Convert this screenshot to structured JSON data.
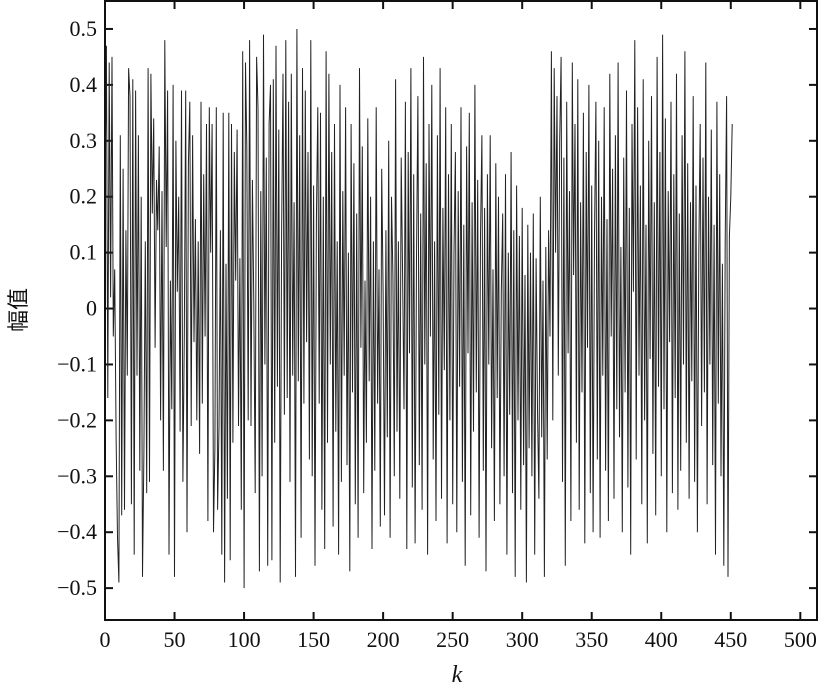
{
  "chart_data": {
    "type": "line",
    "title": "",
    "xlabel": "k",
    "ylabel": "幅值",
    "xlim": [
      0,
      512
    ],
    "ylim": [
      -0.557,
      0.55
    ],
    "grid": false,
    "xticks": [
      "0",
      "50",
      "100",
      "150",
      "200",
      "250",
      "300",
      "350",
      "400",
      "450",
      "500"
    ],
    "yticks": [
      "0.5",
      "0.4",
      "0.3",
      "0.2",
      "0.1",
      "0",
      "−0.1",
      "−0.2",
      "−0.3",
      "−0.4",
      "−0.5"
    ],
    "line_color": "#222222",
    "y": [
      0.21,
      0.47,
      -0.16,
      0.44,
      0.02,
      0.45,
      -0.05,
      0.07,
      -0.23,
      -0.41,
      -0.49,
      0.31,
      -0.37,
      0.25,
      -0.36,
      0.14,
      -0.12,
      0.43,
      0.38,
      -0.35,
      0.41,
      -0.44,
      0.39,
      -0.12,
      0.31,
      -0.29,
      0.2,
      -0.48,
      -0.26,
      0.12,
      -0.33,
      0.43,
      -0.31,
      0.42,
      0.17,
      0.34,
      -0.07,
      0.23,
      0.14,
      0.29,
      -0.2,
      0.21,
      -0.29,
      0.48,
      0.11,
      0.39,
      -0.44,
      0.05,
      -0.18,
      0.4,
      -0.48,
      0.3,
      0.03,
      0.2,
      -0.22,
      0.39,
      -0.31,
      -0.05,
      0.39,
      -0.4,
      0.26,
      0.37,
      -0.21,
      0.31,
      -0.06,
      0.16,
      -0.2,
      0.12,
      -0.26,
      0.37,
      -0.17,
      0.24,
      -0.05,
      0.33,
      -0.38,
      0.36,
      0.1,
      0.33,
      -0.4,
      -0.25,
      0.36,
      -0.36,
      -0.21,
      0.14,
      -0.44,
      0.35,
      -0.49,
      0.08,
      -0.34,
      0.35,
      -0.45,
      0.33,
      -0.24,
      0.28,
      0.05,
      0.32,
      -0.21,
      0.09,
      -0.36,
      0.46,
      -0.5,
      0.44,
      0.29,
      -0.2,
      0.48,
      -0.21,
      0.23,
      0.01,
      -0.33,
      0.45,
      0.36,
      -0.47,
      0.21,
      -0.3,
      0.49,
      -0.1,
      0.27,
      -0.46,
      0.33,
      0.4,
      -0.45,
      0.41,
      -0.24,
      0.47,
      -0.14,
      0.32,
      -0.49,
      0.13,
      0.42,
      -0.19,
      0.48,
      -0.16,
      0.37,
      -0.31,
      0.42,
      -0.12,
      0.19,
      -0.48,
      0.5,
      -0.13,
      0.31,
      -0.41,
      0.43,
      -0.17,
      0.39,
      -0.06,
      0.28,
      -0.27,
      0.48,
      -0.3,
      0.22,
      -0.46,
      0.16,
      0.36,
      -0.17,
      0.35,
      -0.36,
      0.2,
      -0.43,
      0.46,
      -0.24,
      0.42,
      -0.1,
      0.28,
      -0.39,
      0.33,
      -0.22,
      0.12,
      -0.44,
      0.4,
      -0.31,
      0.21,
      -0.12,
      0.36,
      -0.28,
      0.1,
      -0.47,
      0.33,
      -0.15,
      0.26,
      -0.35,
      0.17,
      -0.41,
      0.43,
      -0.07,
      0.29,
      -0.33,
      0.05,
      -0.24,
      0.34,
      -0.13,
      0.2,
      -0.43,
      0.12,
      -0.29,
      0.36,
      -0.17,
      0.07,
      -0.39,
      0.25,
      0.03,
      -0.37,
      0.14,
      -0.23,
      0.3,
      -0.41,
      0.2,
      0.06,
      -0.3,
      0.41,
      -0.22,
      0.12,
      -0.34,
      0.27,
      0.06,
      -0.18,
      0.37,
      -0.43,
      0.28,
      -0.08,
      0.43,
      -0.32,
      0.24,
      -0.42,
      0.09,
      0.38,
      -0.28,
      0.17,
      -0.36,
      0.45,
      -0.1,
      0.26,
      -0.44,
      0.33,
      -0.05,
      0.4,
      -0.27,
      0.12,
      -0.38,
      0.31,
      -0.19,
      0.43,
      -0.34,
      0.18,
      -0.11,
      0.36,
      -0.42,
      0.24,
      -0.2,
      0.33,
      -0.35,
      0.1,
      0.28,
      -0.4,
      0.21,
      -0.14,
      0.36,
      -0.31,
      0.15,
      -0.46,
      0.29,
      -0.08,
      0.35,
      -0.37,
      0.19,
      -0.22,
      0.4,
      -0.15,
      0.23,
      -0.41,
      0.13,
      0.31,
      -0.29,
      0.18,
      -0.47,
      0.24,
      -0.1,
      0.31,
      -0.25,
      0.07,
      -0.38,
      0.26,
      -0.16,
      0.2,
      -0.35,
      0.03,
      0.17,
      -0.3,
      0.24,
      -0.44,
      0.1,
      -0.19,
      0.28,
      -0.33,
      0.14,
      -0.48,
      0.22,
      -0.2,
      0.13,
      -0.36,
      0.18,
      -0.28,
      0.06,
      -0.49,
      0.15,
      -0.25,
      0.1,
      -0.3,
      0.17,
      -0.44,
      0.09,
      -0.18,
      -0.34,
      0.2,
      -0.23,
      0.05,
      -0.48,
      0.11,
      -0.27,
      0.14,
      -0.05,
      0.46,
      -0.2,
      0.43,
      0.1,
      0.38,
      -0.12,
      0.3,
      0.45,
      -0.31,
      0.27,
      -0.46,
      0.37,
      -0.08,
      0.21,
      -0.38,
      0.44,
      0.06,
      0.33,
      -0.24,
      0.41,
      -0.36,
      0.19,
      -0.15,
      0.35,
      -0.42,
      0.28,
      -0.07,
      0.4,
      -0.33,
      0.22,
      -0.4,
      0.13,
      0.37,
      -0.27,
      0.3,
      -0.41,
      0.2,
      -0.12,
      0.36,
      -0.29,
      0.16,
      -0.38,
      0.42,
      -0.05,
      0.25,
      -0.34,
      0.31,
      -0.18,
      0.44,
      -0.23,
      0.11,
      -0.4,
      0.27,
      -0.15,
      0.39,
      -0.32,
      0.18,
      -0.44,
      0.33,
      0.03,
      0.48,
      -0.27,
      0.36,
      -0.12,
      0.22,
      -0.35,
      0.41,
      -0.2,
      0.15,
      -0.42,
      0.3,
      -0.09,
      0.38,
      -0.26,
      0.19,
      -0.37,
      0.45,
      -0.14,
      0.28,
      -0.3,
      0.49,
      -0.18,
      0.34,
      -0.4,
      0.21,
      -0.06,
      0.37,
      -0.33,
      0.24,
      -0.16,
      0.42,
      -0.36,
      0.17,
      -0.29,
      0.31,
      -0.1,
      0.46,
      -0.24,
      0.26,
      -0.34,
      0.19,
      -0.13,
      0.38,
      -0.31,
      0.22,
      -0.4,
      0.1,
      0.33,
      -0.21,
      0.27,
      -0.15,
      0.44,
      -0.35,
      0.2,
      -0.1,
      0.32,
      -0.28,
      0.15,
      -0.44,
      0.37,
      -0.17,
      0.24,
      -0.3,
      0.08,
      -0.46,
      0.12,
      0.38,
      -0.48,
      0.13,
      0.2,
      0.33
    ]
  },
  "chart_labels": {}
}
